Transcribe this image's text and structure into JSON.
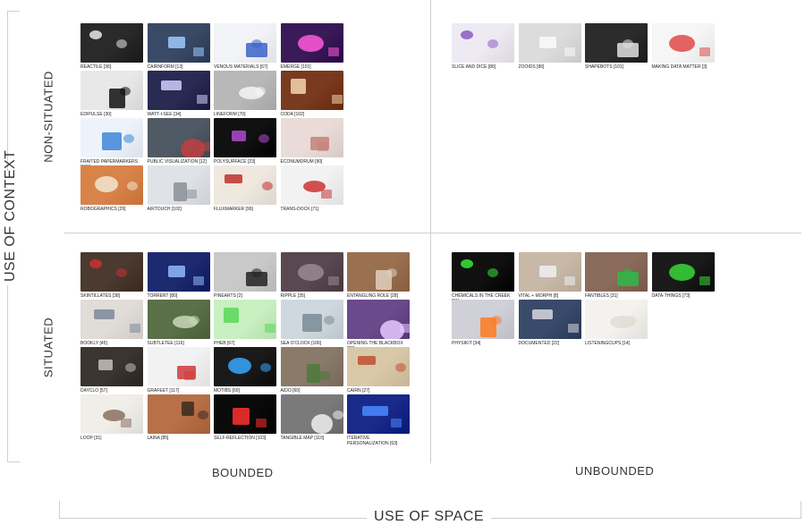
{
  "axes": {
    "y_title": "USE OF CONTEXT",
    "x_title": "USE OF SPACE",
    "rows": {
      "top": "NON-SITUATED",
      "bottom": "SITUATED"
    },
    "cols": {
      "left": "BOUNDED",
      "right": "UNBOUNDED"
    }
  },
  "quadrants": {
    "nonsituated_bounded": [
      {
        "label": "REACTILE [36]",
        "bg": "#2a2a2a",
        "accent": "#e8e8e8"
      },
      {
        "label": "CAIRNFORM [13]",
        "bg": "#3a4a66",
        "accent": "#9fc9ff"
      },
      {
        "label": "VENOUS MATERIALS [67]",
        "bg": "#f1f3f7",
        "accent": "#3b64c8"
      },
      {
        "label": "EMERGE [101]",
        "bg": "#3b1a58",
        "accent": "#ff5ad9"
      },
      {
        "label": "EDIPULSE [30]",
        "bg": "#e8e8e8",
        "accent": "#111111"
      },
      {
        "label": "WATT-I-SEE [34]",
        "bg": "#2a2b52",
        "accent": "#cfcfff"
      },
      {
        "label": "LINEFORM [70]",
        "bg": "#b8b8b8",
        "accent": "#f5f5f5"
      },
      {
        "label": "CODA [102]",
        "bg": "#7a3a1e",
        "accent": "#f2d7b0"
      },
      {
        "label": "FRAITED PAPERMARKERS [121]",
        "bg": "#eef3fb",
        "accent": "#3d86d8"
      },
      {
        "label": "PUBLIC VISUALIZATION [12]",
        "bg": "#505a64",
        "accent": "#c04040"
      },
      {
        "label": "POLYSURFACE [23]",
        "bg": "#111111",
        "accent": "#b04ad0"
      },
      {
        "label": "ECONUMDRUM [90]",
        "bg": "#e9dcd8",
        "accent": "#c4827a"
      },
      {
        "label": "ROBOGRAPHICS [29]",
        "bg": "#d8834a",
        "accent": "#f2e8d0"
      },
      {
        "label": "AIRTOUCH [102]",
        "bg": "#dfe2e6",
        "accent": "#8a8f98"
      },
      {
        "label": "FLUXMARKER [99]",
        "bg": "#efe8df",
        "accent": "#c0302a"
      },
      {
        "label": "TRANS-DOCK [71]",
        "bg": "#f2f2f2",
        "accent": "#cc3333"
      }
    ],
    "nonsituated_unbounded": [
      {
        "label": "SLICE AND DICE [86]",
        "bg": "#eeeaf4",
        "accent": "#8a5cc0"
      },
      {
        "label": "ZOOIDS [86]",
        "bg": "#dcdcdc",
        "accent": "#fafafa"
      },
      {
        "label": "SHAPEBOTS [101]",
        "bg": "#2c2c2c",
        "accent": "#e0e0e0"
      },
      {
        "label": "MAKING DATA MATTER [3]",
        "bg": "#f6f6f6",
        "accent": "#e04848"
      }
    ],
    "situated_bounded": [
      {
        "label": "SKINTILLATES [38]",
        "bg": "#4a3a30",
        "accent": "#d03030"
      },
      {
        "label": "TORRENT [80]",
        "bg": "#1e2a70",
        "accent": "#8fb8ff"
      },
      {
        "label": "PINEARTS [2]",
        "bg": "#c9c9c9",
        "accent": "#222222"
      },
      {
        "label": "RIPPLE [35]",
        "bg": "#5a4850",
        "accent": "#9a8a90"
      },
      {
        "label": "ENTANGLING ROLE [28]",
        "bg": "#9a7050",
        "accent": "#e0d0c0"
      },
      {
        "label": "BOOKLY [45]",
        "bg": "#e0dcd8",
        "accent": "#7a8a9a"
      },
      {
        "label": "SUBTLETEE [116]",
        "bg": "#5a7048",
        "accent": "#c8d8b8"
      },
      {
        "label": "PHEB [67]",
        "bg": "#c8f0c0",
        "accent": "#58d858"
      },
      {
        "label": "SEA O'CLOCK [106]",
        "bg": "#cfd8de",
        "accent": "#7a8c98"
      },
      {
        "label": "OPENING THE BLACKBOX [28]",
        "bg": "#6a4a8a",
        "accent": "#e8c8ff"
      },
      {
        "label": "DAYCLO [57]",
        "bg": "#3a3530",
        "accent": "#c8c0b8"
      },
      {
        "label": "GRAFEET [117]",
        "bg": "#f2f2f2",
        "accent": "#d03a3a"
      },
      {
        "label": "MOTIBS [60]",
        "bg": "#1a1a1a",
        "accent": "#38a8ff"
      },
      {
        "label": "AIDO [60]",
        "bg": "#8a7a6a",
        "accent": "#4a7a3a"
      },
      {
        "label": "CAIRN [27]",
        "bg": "#d8c8a8",
        "accent": "#c05030"
      },
      {
        "label": "LOOP [31]",
        "bg": "#f0eee8",
        "accent": "#8a7060"
      },
      {
        "label": "LAINA [85]",
        "bg": "#b87048",
        "accent": "#3a2a20"
      },
      {
        "label": "SELF-REFLECTION [103]",
        "bg": "#0a0a0a",
        "accent": "#ff3030"
      },
      {
        "label": "TANGIBLE MAP [110]",
        "bg": "#7a7a7a",
        "accent": "#f0f0f0"
      },
      {
        "label": "ITERATIVE PERSONALIZATION [63]",
        "bg": "#1a2a8a",
        "accent": "#4a8aff"
      }
    ],
    "situated_unbounded": [
      {
        "label": "CHEMICALS IN THE CREEK [81]",
        "bg": "#101010",
        "accent": "#38e838"
      },
      {
        "label": "VITAL + MORPH [8]",
        "bg": "#c8b8a8",
        "accent": "#f0f0f0"
      },
      {
        "label": "FANTIBLES [31]",
        "bg": "#8a6a5a",
        "accent": "#30b848"
      },
      {
        "label": "DATA-THINGS [73]",
        "bg": "#1a1a1a",
        "accent": "#38d838"
      },
      {
        "label": "PHYSIKIT [34]",
        "bg": "#d0d0d8",
        "accent": "#ff7a20"
      },
      {
        "label": "DOCUMENTED [22]",
        "bg": "#3a4a6a",
        "accent": "#d8d8e0"
      },
      {
        "label": "LISTENINGCUPS [14]",
        "bg": "#f4f2ee",
        "accent": "#e0dcd4"
      }
    ]
  }
}
